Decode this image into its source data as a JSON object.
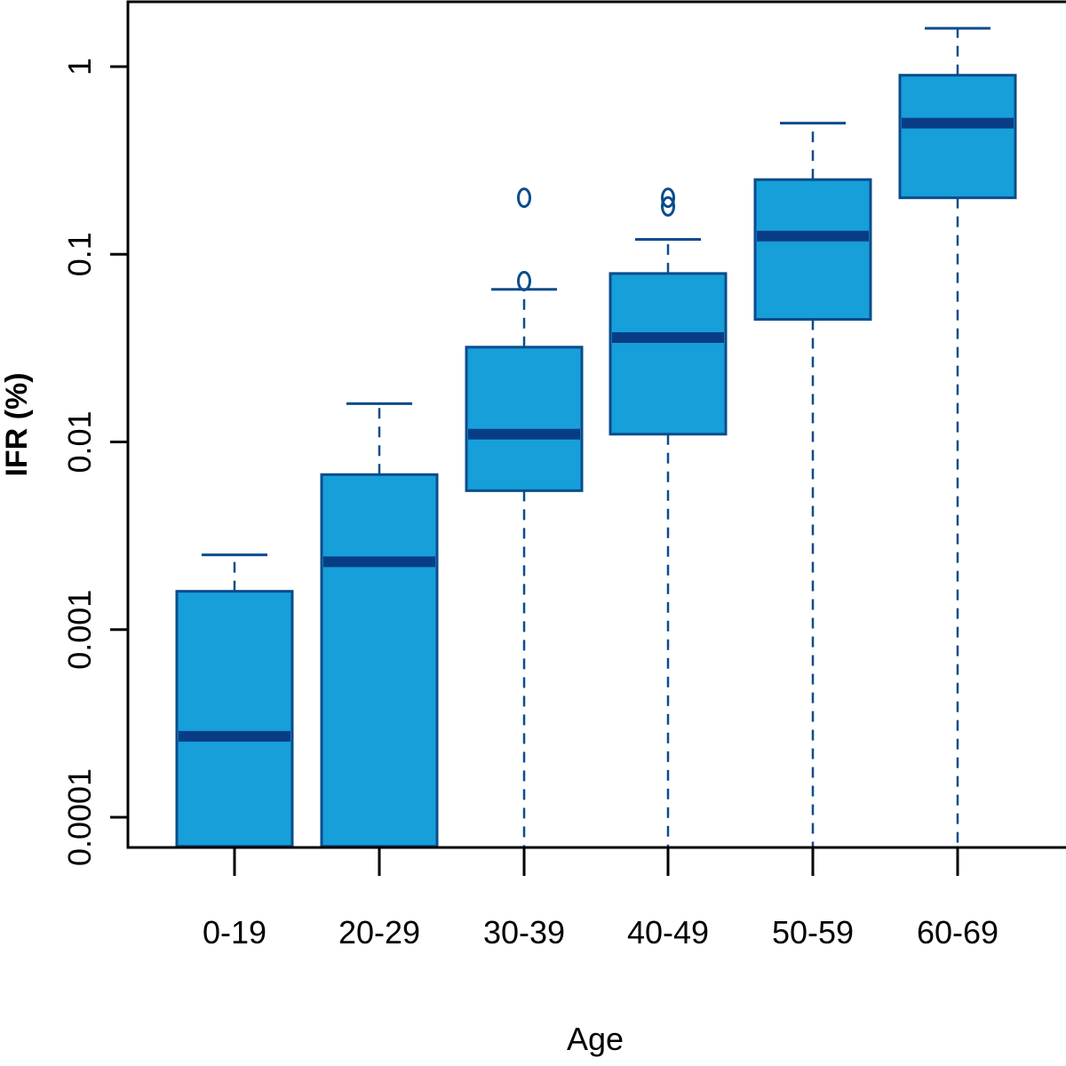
{
  "chart_data": {
    "type": "box",
    "xlabel": "Age",
    "ylabel": "IFR (%)",
    "yscale": "log",
    "ylim": [
      7e-05,
      2
    ],
    "yticks": [
      0.0001,
      0.001,
      0.01,
      0.1,
      1
    ],
    "ytick_labels": [
      "0.0001",
      "0.001",
      "0.01",
      "0.1",
      "1"
    ],
    "categories": [
      "0-19",
      "20-29",
      "30-39",
      "40-49",
      "50-59",
      "60-69"
    ],
    "boxes": [
      {
        "category": "0-19",
        "whisker_low": 7e-05,
        "q1": 7e-05,
        "median": 0.00027,
        "q3": 0.0016,
        "whisker_high": 0.0025,
        "outliers": []
      },
      {
        "category": "20-29",
        "whisker_low": 7e-05,
        "q1": 7e-05,
        "median": 0.0023,
        "q3": 0.0067,
        "whisker_high": 0.016,
        "outliers": []
      },
      {
        "category": "30-39",
        "whisker_low": 7e-05,
        "q1": 0.0055,
        "median": 0.011,
        "q3": 0.032,
        "whisker_high": 0.065,
        "outliers": [
          0.072,
          0.2
        ]
      },
      {
        "category": "40-49",
        "whisker_low": 7e-05,
        "q1": 0.011,
        "median": 0.036,
        "q3": 0.079,
        "whisker_high": 0.12,
        "outliers": [
          0.18,
          0.2
        ]
      },
      {
        "category": "50-59",
        "whisker_low": 7e-05,
        "q1": 0.045,
        "median": 0.125,
        "q3": 0.25,
        "whisker_high": 0.5,
        "outliers": []
      },
      {
        "category": "60-69",
        "whisker_low": 7e-05,
        "q1": 0.2,
        "median": 0.5,
        "q3": 0.9,
        "whisker_high": 1.6,
        "outliers": []
      }
    ],
    "colors": {
      "box_fill": "#169FD9",
      "box_stroke": "#0B4C8C",
      "median": "#083D85",
      "axis": "#000000"
    },
    "grid": false,
    "legend": "none"
  }
}
